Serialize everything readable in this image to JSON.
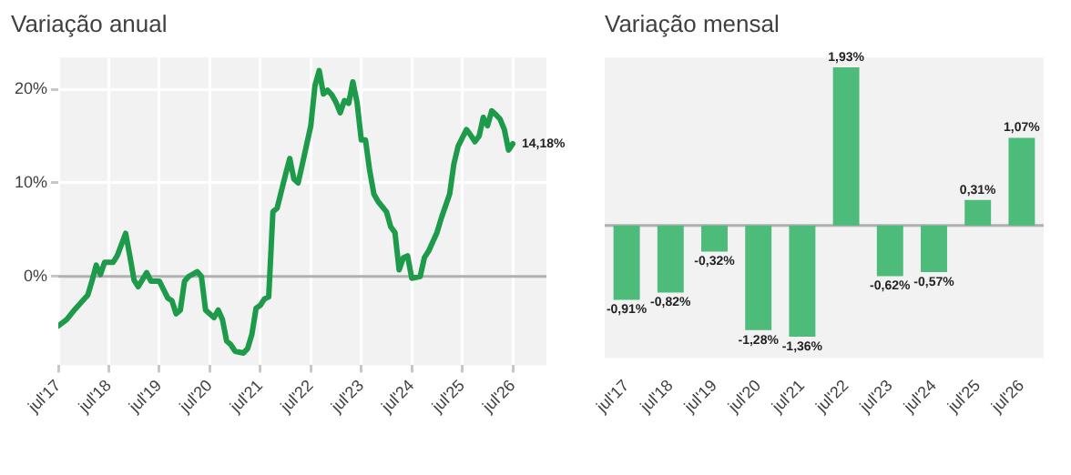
{
  "chart_data": [
    {
      "type": "line",
      "title": "Variação anual",
      "marker": "none",
      "grid": true,
      "legend": false,
      "x": [
        "2017-07",
        "2017-09",
        "2017-11",
        "2018-02",
        "2018-03",
        "2018-04",
        "2018-05",
        "2018-06",
        "2018-08",
        "2018-09",
        "2018-11",
        "2018-12",
        "2019-01",
        "2019-02",
        "2019-04",
        "2019-05",
        "2019-07",
        "2019-09",
        "2019-10",
        "2019-11",
        "2019-12",
        "2020-01",
        "2020-02",
        "2020-04",
        "2020-05",
        "2020-06",
        "2020-08",
        "2020-09",
        "2020-10",
        "2020-11",
        "2020-12",
        "2021-01",
        "2021-03",
        "2021-04",
        "2021-05",
        "2021-06",
        "2021-07",
        "2021-08",
        "2021-09",
        "2021-10",
        "2021-11",
        "2022-01",
        "2022-02",
        "2022-03",
        "2022-04",
        "2022-05",
        "2022-07",
        "2022-08",
        "2022-09",
        "2022-10",
        "2022-11",
        "2022-12",
        "2023-01",
        "2023-02",
        "2023-03",
        "2023-04",
        "2023-05",
        "2023-06",
        "2023-07",
        "2023-08",
        "2023-09",
        "2023-10",
        "2023-11",
        "2024-01",
        "2024-02",
        "2024-03",
        "2024-04",
        "2024-05",
        "2024-06",
        "2024-07",
        "2024-09",
        "2024-10",
        "2024-11",
        "2025-01",
        "2025-02",
        "2025-04",
        "2025-05",
        "2025-06",
        "2025-08",
        "2025-09",
        "2025-10",
        "2025-11",
        "2025-12",
        "2026-01",
        "2026-02",
        "2026-03",
        "2026-04",
        "2026-05",
        "2026-06",
        "2026-07"
      ],
      "series": [
        {
          "color": "#1e9a4b",
          "values": [
            -5.3,
            -4.6,
            -3.5,
            -2.0,
            -0.5,
            1.2,
            0.2,
            1.5,
            1.5,
            2.2,
            4.6,
            2.2,
            -0.4,
            -1.1,
            0.4,
            -0.5,
            -0.5,
            -2.3,
            -2.6,
            -4.0,
            -3.6,
            -0.5,
            0,
            0.5,
            0,
            -3.6,
            -4.4,
            -3.6,
            -4.6,
            -6.9,
            -7.3,
            -8.0,
            -8.2,
            -7.7,
            -6.2,
            -3.4,
            -3.1,
            -2.4,
            -2.2,
            6.9,
            7.3,
            10.9,
            12.6,
            10.4,
            10.0,
            12.0,
            16.1,
            20.4,
            22.0,
            19.5,
            19.9,
            19.4,
            18.6,
            17.5,
            18.8,
            18.5,
            20.8,
            18.6,
            14.6,
            14.6,
            11.3,
            8.8,
            8.0,
            6.9,
            5.3,
            4.7,
            0.7,
            2.0,
            2.2,
            -0.2,
            0,
            2.0,
            2.7,
            4.7,
            6.2,
            8.8,
            12.0,
            13.9,
            15.7,
            15.1,
            14.4,
            15.0,
            17.0,
            16.1,
            17.7,
            17.3,
            16.8,
            15.7,
            13.5,
            14.18
          ]
        }
      ],
      "xlim": [
        "2017-07",
        "2027-03"
      ],
      "xticks": [
        {
          "value": "2017-07",
          "label": "jul'17"
        },
        {
          "value": "2018-07",
          "label": "jul'18"
        },
        {
          "value": "2019-07",
          "label": "jul'19"
        },
        {
          "value": "2020-07",
          "label": "jul'20"
        },
        {
          "value": "2021-07",
          "label": "jul'21"
        },
        {
          "value": "2022-07",
          "label": "jul'22"
        },
        {
          "value": "2023-07",
          "label": "jul'23"
        },
        {
          "value": "2024-07",
          "label": "jul'24"
        },
        {
          "value": "2025-07",
          "label": "jul'25"
        },
        {
          "value": "2026-07",
          "label": "jul'26"
        }
      ],
      "ylim": [
        -9.5,
        23.4
      ],
      "yticks": [
        {
          "value": 0,
          "label": "0%"
        },
        {
          "value": 10,
          "label": "10%"
        },
        {
          "value": 20,
          "label": "20%"
        }
      ],
      "ref_lines": [
        {
          "axis": "y",
          "value": 0,
          "color": "#b0b0b0"
        }
      ],
      "annotations": [
        {
          "text": "14,18%",
          "x": "2026-07",
          "y": 14.18
        }
      ]
    },
    {
      "type": "bar",
      "title": "Variação mensal",
      "grid": false,
      "legend": false,
      "tick_labels": "x",
      "categories": [
        "jul'17",
        "jul'18",
        "jul'19",
        "jul'20",
        "jul'21",
        "jul'22",
        "jul'23",
        "jul'24",
        "jul'25",
        "jul'26"
      ],
      "values": [
        -0.91,
        -0.82,
        -0.32,
        -1.28,
        -1.36,
        1.93,
        -0.62,
        -0.57,
        0.31,
        1.07
      ],
      "value_labels": [
        "-0,91%",
        "-0,82%",
        "-0,32%",
        "-1,28%",
        "-1,36%",
        "1,93%",
        "-0,62%",
        "-0,57%",
        "0,31%",
        "1,07%"
      ],
      "color": "#4dbb7a",
      "ylim": [
        -1.62,
        2.05
      ],
      "ref_lines": [
        {
          "axis": "y",
          "value": 0,
          "color": "#b0b0b0"
        }
      ]
    }
  ]
}
